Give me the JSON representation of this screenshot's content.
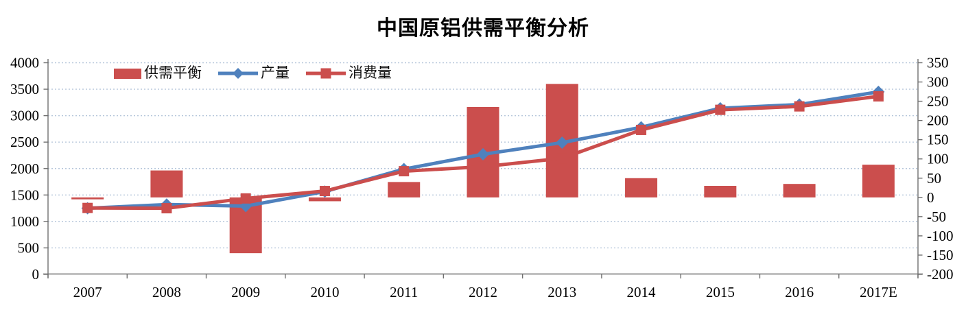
{
  "title": "中国原铝供需平衡分析",
  "legend": [
    {
      "label": "供需平衡",
      "swatch": "bar",
      "color": "#cb4e4d"
    },
    {
      "label": "产量",
      "swatch": "line-diamond",
      "color": "#4f81bd"
    },
    {
      "label": "消费量",
      "swatch": "line-square",
      "color": "#cb4e4d"
    }
  ],
  "colors": {
    "bar_red": "#cb4e4d",
    "line_blue": "#4f81bd",
    "line_red": "#cb4e4d",
    "gridline": "#b7c7db",
    "axis_line": "#6f6f6f",
    "text": "#000000"
  },
  "chart_data": {
    "type": "combo",
    "title": "中国原铝供需平衡分析",
    "categories": [
      "2007",
      "2008",
      "2009",
      "2010",
      "2011",
      "2012",
      "2013",
      "2014",
      "2015",
      "2016",
      "2017E"
    ],
    "series": [
      {
        "name": "供需平衡",
        "type": "bar",
        "axis": "right",
        "color": "#cb4e4d",
        "values": [
          -5,
          70,
          -145,
          -10,
          40,
          235,
          295,
          50,
          30,
          35,
          85
        ]
      },
      {
        "name": "产量",
        "type": "line",
        "marker": "diamond",
        "axis": "left",
        "color": "#4f81bd",
        "values": [
          1250,
          1320,
          1290,
          1565,
          1990,
          2270,
          2490,
          2780,
          3140,
          3210,
          3450
        ]
      },
      {
        "name": "消费量",
        "type": "line",
        "marker": "square",
        "axis": "left",
        "color": "#cb4e4d",
        "values": [
          1255,
          1250,
          1435,
          1575,
          1950,
          2035,
          2195,
          2730,
          3110,
          3175,
          3365
        ]
      }
    ],
    "left_axis": {
      "min": 0,
      "max": 4000,
      "step": 500,
      "ticks": [
        "4000",
        "3500",
        "3000",
        "2500",
        "2000",
        "1500",
        "1000",
        "500",
        "0"
      ]
    },
    "right_axis": {
      "min": -200,
      "max": 350,
      "step": 50,
      "ticks": [
        "350",
        "300",
        "250",
        "200",
        "150",
        "100",
        "50",
        "0",
        "-50",
        "-100",
        "-150",
        "-200"
      ]
    },
    "grid": "horizontal-dotted",
    "legend_position": "top-inside-left",
    "xlabel": "",
    "ylabel": ""
  }
}
